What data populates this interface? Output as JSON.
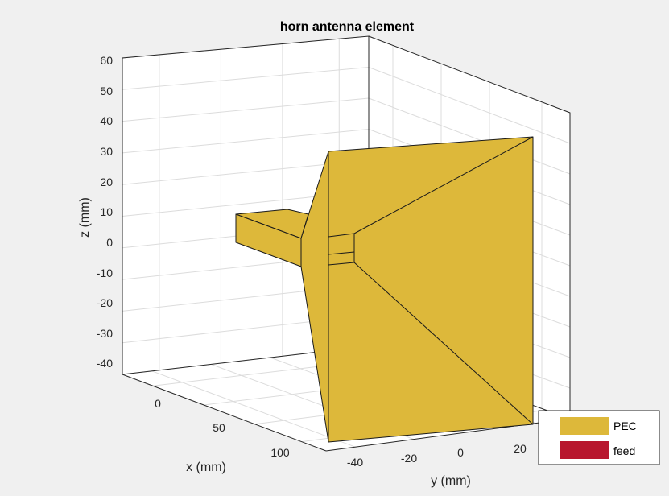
{
  "chart_data": {
    "type": "3d-surface",
    "title": "horn antenna element",
    "xlabel": "x (mm)",
    "ylabel": "y (mm)",
    "zlabel": "z (mm)",
    "x_ticks": [
      "0",
      "50",
      "100"
    ],
    "y_ticks": [
      "-40",
      "-20",
      "0",
      "20"
    ],
    "z_ticks": [
      "60",
      "50",
      "40",
      "30",
      "20",
      "10",
      "0",
      "-10",
      "-20",
      "-30",
      "-40"
    ],
    "grid": true,
    "legend": {
      "placement": "bottom-right",
      "entries": [
        {
          "label": "PEC",
          "color": "#ddb83a"
        },
        {
          "label": "feed",
          "color": "#b8162e"
        }
      ]
    },
    "colors": {
      "pec": "#ddb83a",
      "feed": "#b8162e",
      "edge": "#1a1a1a",
      "grid": "#dcdcdc",
      "axes_box": "#262626",
      "background": "#f0f0f0",
      "plot_bg": "#ffffff"
    }
  }
}
